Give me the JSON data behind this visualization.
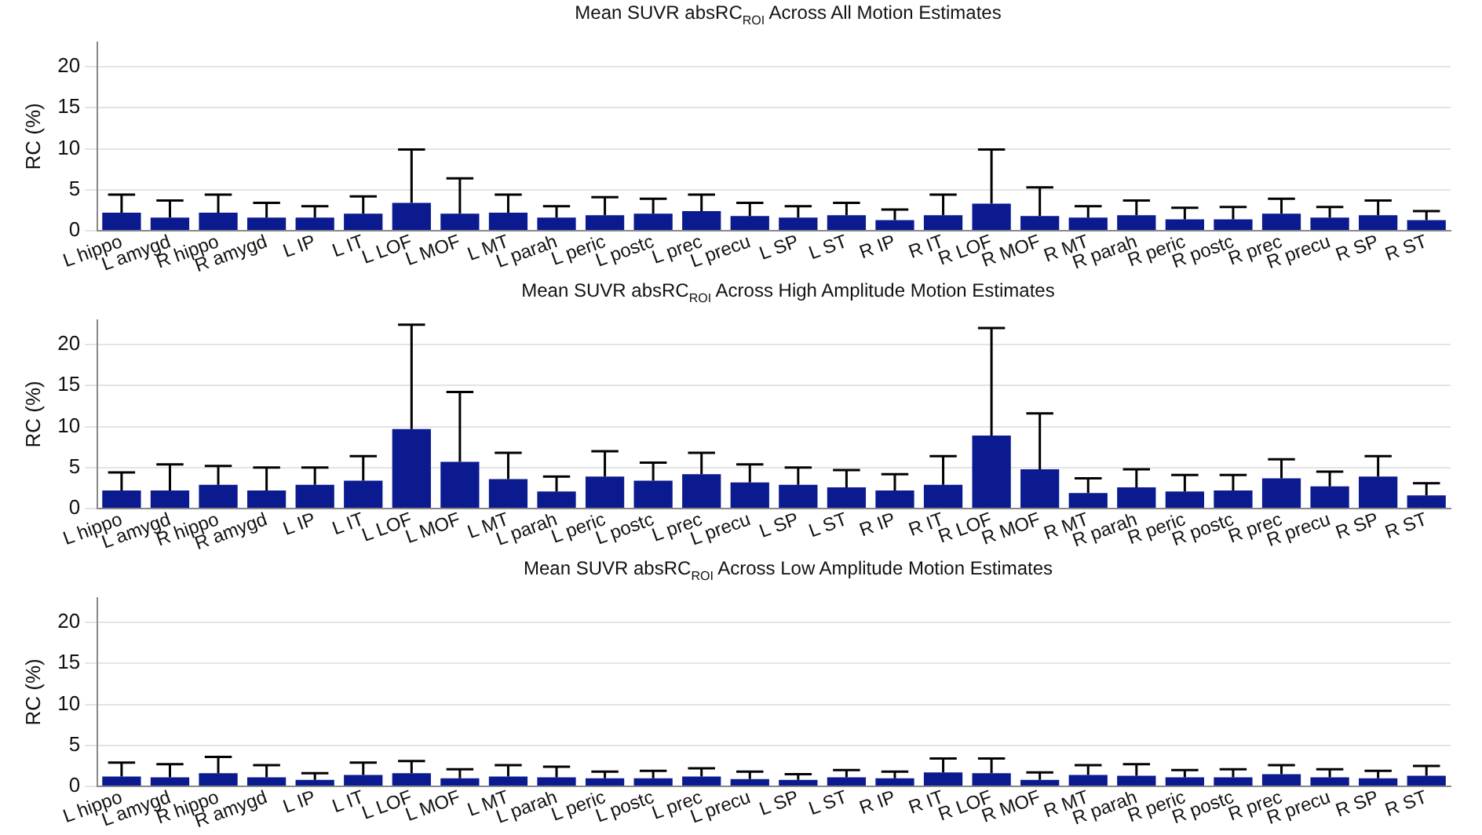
{
  "chart_data": [
    {
      "type": "bar",
      "title": "Mean SUVR absRC$_{ROI}$ Across All Motion Estimates",
      "ylabel": "RC (%)",
      "color": "#0b1a8f",
      "ylim": [
        0,
        23
      ],
      "yticks": [
        0,
        5,
        10,
        15,
        20
      ],
      "grid": "y",
      "categories": [
        "L hippo",
        "L amygd",
        "R hippo",
        "R amygd",
        "L IP",
        "L IT",
        "L LOF",
        "L MOF",
        "L MT",
        "L parah",
        "L peric",
        "L postc",
        "L prec",
        "L precu",
        "L SP",
        "L ST",
        "R IP",
        "R IT",
        "R LOF",
        "R MOF",
        "R MT",
        "R parah",
        "R peric",
        "R postc",
        "R prec",
        "R precu",
        "R SP",
        "R ST"
      ],
      "values": [
        2.2,
        1.6,
        2.2,
        1.6,
        1.6,
        2.1,
        3.4,
        2.1,
        2.2,
        1.6,
        1.9,
        2.1,
        2.4,
        1.8,
        1.6,
        1.9,
        1.3,
        1.9,
        3.3,
        1.8,
        1.6,
        1.9,
        1.4,
        1.4,
        2.1,
        1.6,
        1.9,
        1.3
      ],
      "errors": [
        [
          2.2,
          4.4
        ],
        [
          1.6,
          3.7
        ],
        [
          2.2,
          4.4
        ],
        [
          1.6,
          3.4
        ],
        [
          1.6,
          3.0
        ],
        [
          2.1,
          4.2
        ],
        [
          3.4,
          9.9
        ],
        [
          2.1,
          6.4
        ],
        [
          2.2,
          4.4
        ],
        [
          1.6,
          3.0
        ],
        [
          1.9,
          4.1
        ],
        [
          2.1,
          3.9
        ],
        [
          2.4,
          4.4
        ],
        [
          1.8,
          3.4
        ],
        [
          1.6,
          3.0
        ],
        [
          1.9,
          3.4
        ],
        [
          1.3,
          2.6
        ],
        [
          1.9,
          4.4
        ],
        [
          3.3,
          9.9
        ],
        [
          1.8,
          5.3
        ],
        [
          1.6,
          3.0
        ],
        [
          1.9,
          3.7
        ],
        [
          1.4,
          2.8
        ],
        [
          1.4,
          2.9
        ],
        [
          2.1,
          3.9
        ],
        [
          1.6,
          2.9
        ],
        [
          1.9,
          3.7
        ],
        [
          1.3,
          2.4
        ]
      ]
    },
    {
      "type": "bar",
      "title": "Mean SUVR absRC$_{ROI}$ Across High Amplitude Motion Estimates",
      "ylabel": "RC (%)",
      "color": "#0b1a8f",
      "ylim": [
        0,
        23
      ],
      "yticks": [
        0,
        5,
        10,
        15,
        20
      ],
      "grid": "y",
      "categories": [
        "L hippo",
        "L amygd",
        "R hippo",
        "R amygd",
        "L IP",
        "L IT",
        "L LOF",
        "L MOF",
        "L MT",
        "L parah",
        "L peric",
        "L postc",
        "L prec",
        "L precu",
        "L SP",
        "L ST",
        "R IP",
        "R IT",
        "R LOF",
        "R MOF",
        "R MT",
        "R parah",
        "R peric",
        "R postc",
        "R prec",
        "R precu",
        "R SP",
        "R ST"
      ],
      "values": [
        2.2,
        2.2,
        2.9,
        2.2,
        2.9,
        3.4,
        9.7,
        5.7,
        3.6,
        2.1,
        3.9,
        3.4,
        4.2,
        3.2,
        2.9,
        2.6,
        2.2,
        2.9,
        8.9,
        4.8,
        1.9,
        2.6,
        2.1,
        2.2,
        3.7,
        2.7,
        3.9,
        1.6
      ],
      "errors": [
        [
          2.2,
          4.4
        ],
        [
          2.2,
          5.4
        ],
        [
          2.9,
          5.2
        ],
        [
          2.2,
          5.0
        ],
        [
          2.9,
          5.0
        ],
        [
          3.4,
          6.4
        ],
        [
          9.7,
          22.4
        ],
        [
          5.7,
          14.2
        ],
        [
          3.6,
          6.8
        ],
        [
          2.1,
          3.9
        ],
        [
          3.9,
          7.0
        ],
        [
          3.4,
          5.6
        ],
        [
          4.2,
          6.8
        ],
        [
          3.2,
          5.4
        ],
        [
          2.9,
          5.0
        ],
        [
          2.6,
          4.7
        ],
        [
          2.2,
          4.2
        ],
        [
          2.9,
          6.4
        ],
        [
          8.9,
          22.0
        ],
        [
          4.8,
          11.6
        ],
        [
          1.9,
          3.7
        ],
        [
          2.6,
          4.8
        ],
        [
          2.1,
          4.1
        ],
        [
          2.2,
          4.1
        ],
        [
          3.7,
          6.0
        ],
        [
          2.7,
          4.5
        ],
        [
          3.9,
          6.4
        ],
        [
          1.6,
          3.1
        ]
      ]
    },
    {
      "type": "bar",
      "title": "Mean SUVR absRC$_{ROI}$ Across Low Amplitude Motion Estimates",
      "ylabel": "RC (%)",
      "color": "#0b1a8f",
      "ylim": [
        0,
        23
      ],
      "yticks": [
        0,
        5,
        10,
        15,
        20
      ],
      "grid": "y",
      "categories": [
        "L hippo",
        "L amygd",
        "R hippo",
        "R amygd",
        "L IP",
        "L IT",
        "L LOF",
        "L MOF",
        "L MT",
        "L parah",
        "L peric",
        "L postc",
        "L prec",
        "L precu",
        "L SP",
        "L ST",
        "R IP",
        "R IT",
        "R LOF",
        "R MOF",
        "R MT",
        "R parah",
        "R peric",
        "R postc",
        "R prec",
        "R precu",
        "R SP",
        "R ST"
      ],
      "values": [
        1.2,
        1.1,
        1.6,
        1.1,
        0.8,
        1.4,
        1.6,
        1.0,
        1.2,
        1.1,
        1.0,
        1.0,
        1.2,
        0.9,
        0.8,
        1.1,
        1.0,
        1.7,
        1.6,
        0.8,
        1.4,
        1.3,
        1.1,
        1.1,
        1.5,
        1.1,
        1.0,
        1.3
      ],
      "errors": [
        [
          1.2,
          2.9
        ],
        [
          1.1,
          2.7
        ],
        [
          1.6,
          3.6
        ],
        [
          1.1,
          2.6
        ],
        [
          0.8,
          1.6
        ],
        [
          1.4,
          2.9
        ],
        [
          1.6,
          3.1
        ],
        [
          1.0,
          2.1
        ],
        [
          1.2,
          2.6
        ],
        [
          1.1,
          2.4
        ],
        [
          1.0,
          1.8
        ],
        [
          1.0,
          1.9
        ],
        [
          1.2,
          2.2
        ],
        [
          0.9,
          1.8
        ],
        [
          0.8,
          1.5
        ],
        [
          1.1,
          2.0
        ],
        [
          1.0,
          1.8
        ],
        [
          1.7,
          3.4
        ],
        [
          1.6,
          3.4
        ],
        [
          0.8,
          1.7
        ],
        [
          1.4,
          2.6
        ],
        [
          1.3,
          2.7
        ],
        [
          1.1,
          2.0
        ],
        [
          1.1,
          2.1
        ],
        [
          1.5,
          2.6
        ],
        [
          1.1,
          2.1
        ],
        [
          1.0,
          1.9
        ],
        [
          1.3,
          2.5
        ]
      ]
    }
  ]
}
